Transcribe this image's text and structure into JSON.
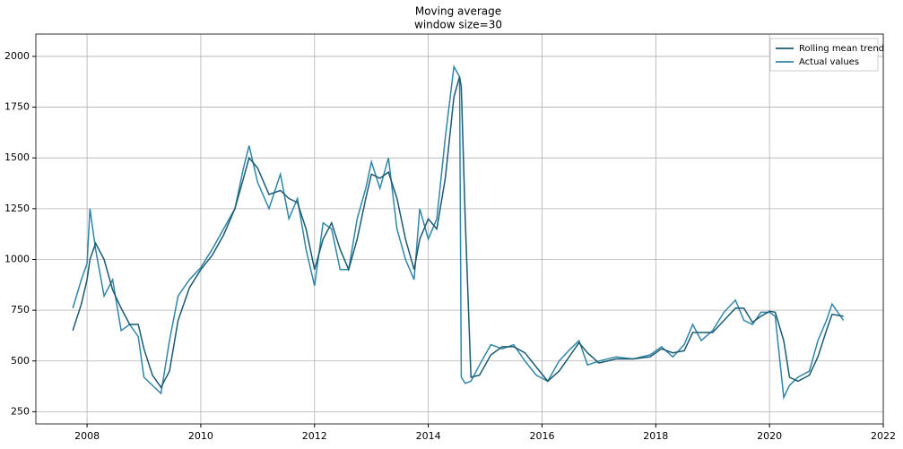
{
  "chart_data": {
    "type": "line",
    "title": "Moving average",
    "subtitle": "window size=30",
    "x": [
      2007.75,
      2007.9,
      2008.0,
      2008.05,
      2008.15,
      2008.3,
      2008.45,
      2008.6,
      2008.75,
      2008.9,
      2009.0,
      2009.15,
      2009.3,
      2009.45,
      2009.6,
      2009.8,
      2010.0,
      2010.2,
      2010.4,
      2010.6,
      2010.75,
      2010.85,
      2011.0,
      2011.2,
      2011.4,
      2011.55,
      2011.7,
      2011.85,
      2012.0,
      2012.15,
      2012.3,
      2012.45,
      2012.6,
      2012.75,
      2012.9,
      2013.0,
      2013.15,
      2013.3,
      2013.45,
      2013.6,
      2013.75,
      2013.85,
      2014.0,
      2014.15,
      2014.3,
      2014.45,
      2014.55,
      2014.58,
      2014.65,
      2014.75,
      2014.9,
      2015.1,
      2015.3,
      2015.5,
      2015.7,
      2015.9,
      2016.1,
      2016.3,
      2016.5,
      2016.65,
      2016.8,
      2017.0,
      2017.3,
      2017.6,
      2017.9,
      2018.1,
      2018.3,
      2018.5,
      2018.65,
      2018.8,
      2019.0,
      2019.2,
      2019.4,
      2019.55,
      2019.7,
      2019.85,
      2020.0,
      2020.1,
      2020.25,
      2020.35,
      2020.5,
      2020.7,
      2020.85,
      2021.0,
      2021.1,
      2021.3
    ],
    "series": [
      {
        "name": "Rolling mean trend",
        "color": "#1b5a70",
        "values": [
          650,
          780,
          900,
          1000,
          1080,
          1000,
          850,
          760,
          680,
          680,
          560,
          430,
          370,
          450,
          700,
          860,
          950,
          1020,
          1120,
          1250,
          1400,
          1500,
          1450,
          1320,
          1340,
          1300,
          1280,
          1150,
          950,
          1100,
          1180,
          1050,
          950,
          1100,
          1300,
          1420,
          1400,
          1430,
          1300,
          1100,
          950,
          1100,
          1200,
          1150,
          1400,
          1800,
          1900,
          1850,
          1200,
          420,
          430,
          530,
          570,
          570,
          540,
          470,
          400,
          450,
          530,
          590,
          540,
          490,
          510,
          510,
          520,
          560,
          540,
          550,
          640,
          640,
          640,
          700,
          760,
          760,
          690,
          720,
          745,
          740,
          600,
          420,
          400,
          430,
          520,
          650,
          730,
          720
        ]
      },
      {
        "name": "Actual values",
        "color": "#2e86a8",
        "values": [
          760,
          900,
          980,
          1250,
          1050,
          820,
          900,
          650,
          680,
          620,
          420,
          380,
          340,
          600,
          820,
          900,
          960,
          1050,
          1150,
          1250,
          1450,
          1560,
          1380,
          1250,
          1420,
          1200,
          1300,
          1050,
          870,
          1180,
          1150,
          950,
          950,
          1200,
          1350,
          1480,
          1350,
          1500,
          1150,
          1000,
          900,
          1250,
          1100,
          1200,
          1600,
          1950,
          1900,
          420,
          390,
          400,
          480,
          580,
          560,
          580,
          500,
          430,
          400,
          500,
          560,
          600,
          480,
          500,
          520,
          510,
          530,
          570,
          520,
          580,
          680,
          600,
          650,
          740,
          800,
          700,
          680,
          740,
          740,
          720,
          320,
          380,
          420,
          450,
          600,
          700,
          780,
          700
        ]
      }
    ],
    "xlim": [
      2007.1,
      2022
    ],
    "xticks": [
      2008,
      2010,
      2012,
      2014,
      2016,
      2018,
      2020,
      2022
    ],
    "ylim": [
      190,
      2110
    ],
    "yticks": [
      250,
      500,
      750,
      1000,
      1250,
      1500,
      1750,
      2000
    ],
    "grid": true,
    "legend": "upper right"
  }
}
